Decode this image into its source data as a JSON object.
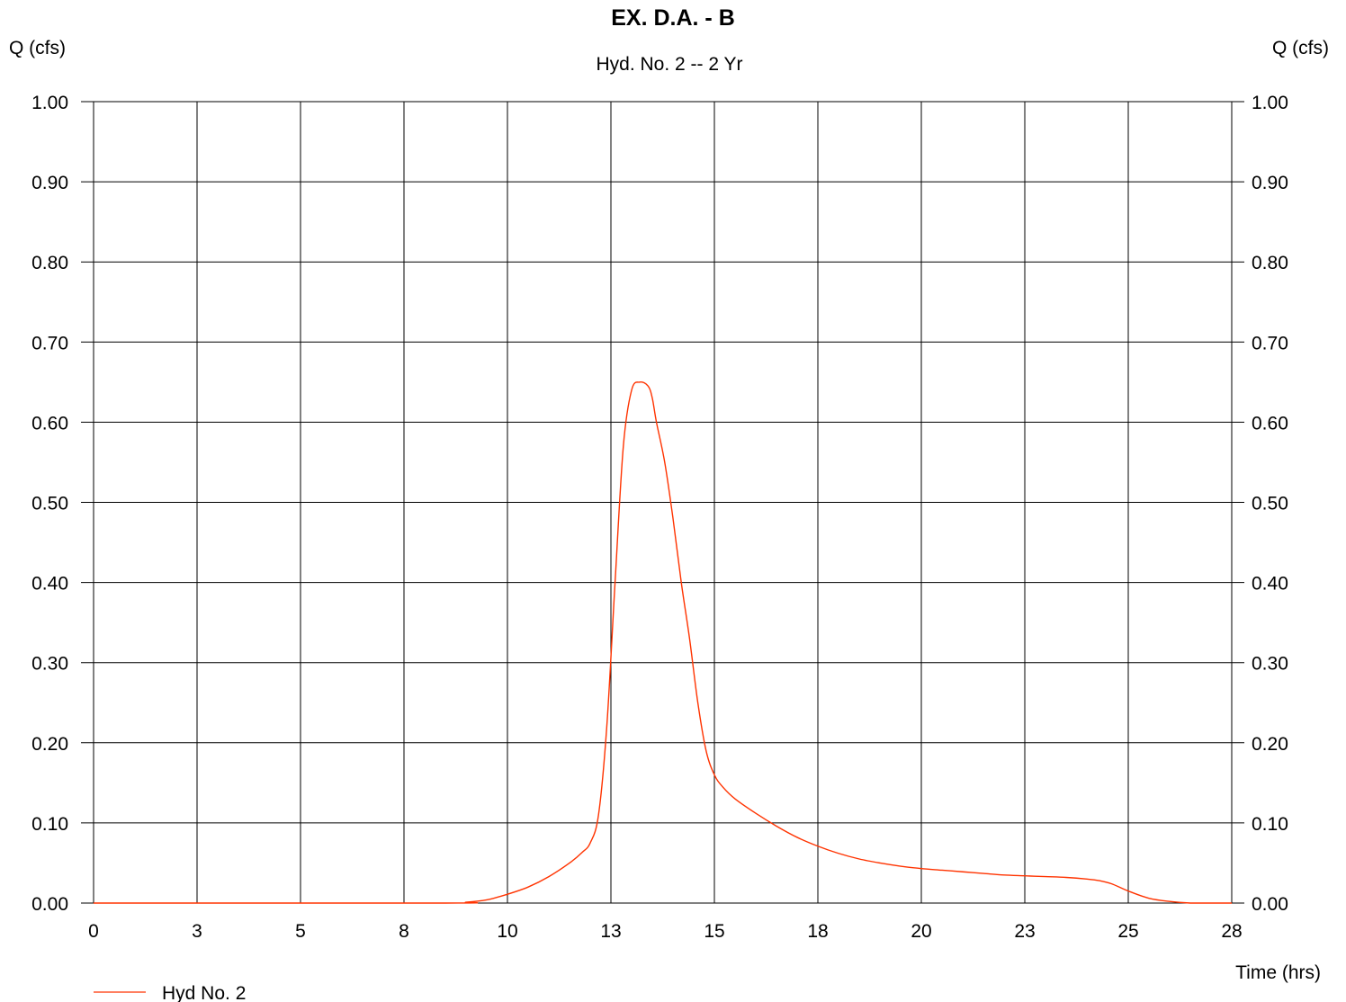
{
  "chart_data": {
    "type": "line",
    "title": "EX. D.A. - B",
    "subtitle": "Hyd. No. 2 -- 2 Yr",
    "ylabel_left": "Q (cfs)",
    "ylabel_right": "Q (cfs)",
    "xlabel": "Time (hrs)",
    "xlim": [
      0,
      27.5
    ],
    "ylim": [
      0,
      1.0
    ],
    "x_tick_labels": [
      "0",
      "3",
      "5",
      "8",
      "10",
      "13",
      "15",
      "18",
      "20",
      "23",
      "25",
      "28"
    ],
    "y_tick_labels": [
      "0.00",
      "0.10",
      "0.20",
      "0.30",
      "0.40",
      "0.50",
      "0.60",
      "0.70",
      "0.80",
      "0.90",
      "1.00"
    ],
    "grid": true,
    "legend_position": "bottom-left",
    "series": [
      {
        "name": "Hyd No. 2",
        "color": "#ff3300",
        "x": [
          0,
          8.5,
          9.0,
          9.5,
          10.0,
          10.5,
          11.0,
          11.5,
          11.8,
          12.0,
          12.2,
          12.4,
          12.6,
          12.8,
          13.0,
          13.2,
          13.4,
          13.5,
          13.6,
          13.8,
          14.0,
          14.2,
          14.4,
          14.6,
          14.8,
          15.0,
          15.2,
          15.5,
          16.0,
          16.5,
          17.0,
          17.5,
          18.0,
          18.5,
          19.0,
          19.5,
          20.0,
          20.5,
          21.0,
          21.5,
          22.0,
          22.5,
          23.0,
          23.5,
          24.0,
          24.3,
          24.6,
          25.0,
          25.5,
          26.0,
          26.5,
          27.0,
          27.5
        ],
        "y": [
          0.0,
          0.0,
          0.001,
          0.004,
          0.011,
          0.02,
          0.033,
          0.05,
          0.063,
          0.075,
          0.11,
          0.22,
          0.4,
          0.57,
          0.64,
          0.65,
          0.645,
          0.63,
          0.6,
          0.55,
          0.48,
          0.4,
          0.33,
          0.25,
          0.19,
          0.16,
          0.145,
          0.13,
          0.112,
          0.096,
          0.082,
          0.071,
          0.062,
          0.055,
          0.05,
          0.046,
          0.043,
          0.041,
          0.039,
          0.037,
          0.035,
          0.034,
          0.033,
          0.032,
          0.03,
          0.028,
          0.024,
          0.015,
          0.006,
          0.002,
          0.0,
          0.0,
          0.0
        ]
      }
    ]
  }
}
